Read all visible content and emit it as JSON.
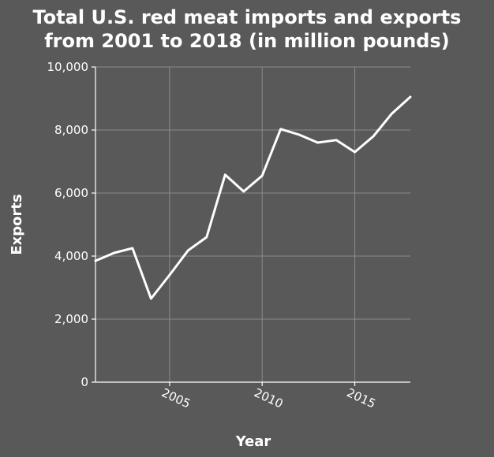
{
  "chart_data": {
    "type": "line",
    "title_lines": [
      "Total U.S. red meat imports and exports",
      "from 2001 to 2018 (in million pounds)"
    ],
    "xlabel": "Year",
    "ylabel": "Exports",
    "xlim": [
      2001,
      2018
    ],
    "ylim": [
      0,
      10000
    ],
    "x_ticks": [
      2005,
      2010,
      2015
    ],
    "x_tick_labels": [
      "2005",
      "2010",
      "2015"
    ],
    "y_ticks": [
      0,
      2000,
      4000,
      6000,
      8000,
      10000
    ],
    "y_tick_labels": [
      "0",
      "2,000",
      "4,000",
      "6,000",
      "8,000",
      "10,000"
    ],
    "grid": true,
    "series": [
      {
        "x": [
          2001,
          2002,
          2003,
          2004,
          2005,
          2006,
          2007,
          2008,
          2009,
          2010,
          2011,
          2012,
          2013,
          2014,
          2015,
          2016,
          2017,
          2018
        ],
        "values": [
          3850,
          4100,
          4250,
          2650,
          3400,
          4180,
          4600,
          6580,
          6050,
          6550,
          8030,
          7850,
          7600,
          7680,
          7300,
          7800,
          8520,
          9050
        ]
      }
    ],
    "colors": {
      "background": "#595959",
      "line": "#ffffff",
      "grid": "#8c8c8c",
      "text": "#ffffff"
    }
  }
}
